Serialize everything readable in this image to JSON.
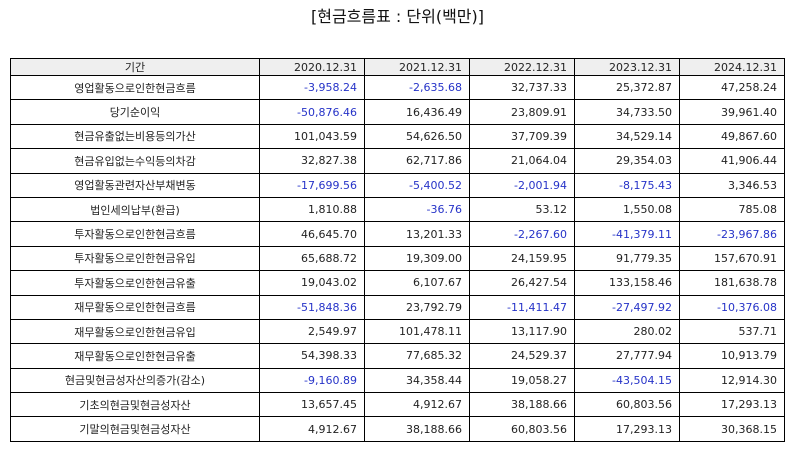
{
  "title": "[현금흐름표 : 단위(백만)]",
  "colors": {
    "negative": "#2633c8",
    "header_bg": "#efefef",
    "text": "#222222"
  },
  "chart_data": {
    "type": "table",
    "title": "[현금흐름표 : 단위(백만)]",
    "columns": [
      "기간",
      "2020.12.31",
      "2021.12.31",
      "2022.12.31",
      "2023.12.31",
      "2024.12.31"
    ],
    "rows": [
      {
        "label": "영업활동으로인한현금흐름",
        "values": [
          "-3,958.24",
          "-2,635.68",
          "32,737.33",
          "25,372.87",
          "47,258.24"
        ]
      },
      {
        "label": "당기순이익",
        "values": [
          "-50,876.46",
          "16,436.49",
          "23,809.91",
          "34,733.50",
          "39,961.40"
        ]
      },
      {
        "label": "현금유출없는비용등의가산",
        "values": [
          "101,043.59",
          "54,626.50",
          "37,709.39",
          "34,529.14",
          "49,867.60"
        ]
      },
      {
        "label": "현금유입없는수익등의차감",
        "values": [
          "32,827.38",
          "62,717.86",
          "21,064.04",
          "29,354.03",
          "41,906.44"
        ]
      },
      {
        "label": "영업활동관련자산부채변동",
        "values": [
          "-17,699.56",
          "-5,400.52",
          "-2,001.94",
          "-8,175.43",
          "3,346.53"
        ]
      },
      {
        "label": "법인세의납부(환급)",
        "values": [
          "1,810.88",
          "-36.76",
          "53.12",
          "1,550.08",
          "785.08"
        ]
      },
      {
        "label": "투자활동으로인한현금흐름",
        "values": [
          "46,645.70",
          "13,201.33",
          "-2,267.60",
          "-41,379.11",
          "-23,967.86"
        ]
      },
      {
        "label": "투자활동으로인한현금유입",
        "values": [
          "65,688.72",
          "19,309.00",
          "24,159.95",
          "91,779.35",
          "157,670.91"
        ]
      },
      {
        "label": "투자활동으로인한현금유출",
        "values": [
          "19,043.02",
          "6,107.67",
          "26,427.54",
          "133,158.46",
          "181,638.78"
        ]
      },
      {
        "label": "재무활동으로인한현금흐름",
        "values": [
          "-51,848.36",
          "23,792.79",
          "-11,411.47",
          "-27,497.92",
          "-10,376.08"
        ]
      },
      {
        "label": "재무활동으로인한현금유입",
        "values": [
          "2,549.97",
          "101,478.11",
          "13,117.90",
          "280.02",
          "537.71"
        ]
      },
      {
        "label": "재무활동으로인한현금유출",
        "values": [
          "54,398.33",
          "77,685.32",
          "24,529.37",
          "27,777.94",
          "10,913.79"
        ]
      },
      {
        "label": "현금및현금성자산의증가(감소)",
        "values": [
          "-9,160.89",
          "34,358.44",
          "19,058.27",
          "-43,504.15",
          "12,914.30"
        ]
      },
      {
        "label": "기초의현금및현금성자산",
        "values": [
          "13,657.45",
          "4,912.67",
          "38,188.66",
          "60,803.56",
          "17,293.13"
        ]
      },
      {
        "label": "기말의현금및현금성자산",
        "values": [
          "4,912.67",
          "38,188.66",
          "60,803.56",
          "17,293.13",
          "30,368.15"
        ]
      }
    ]
  }
}
